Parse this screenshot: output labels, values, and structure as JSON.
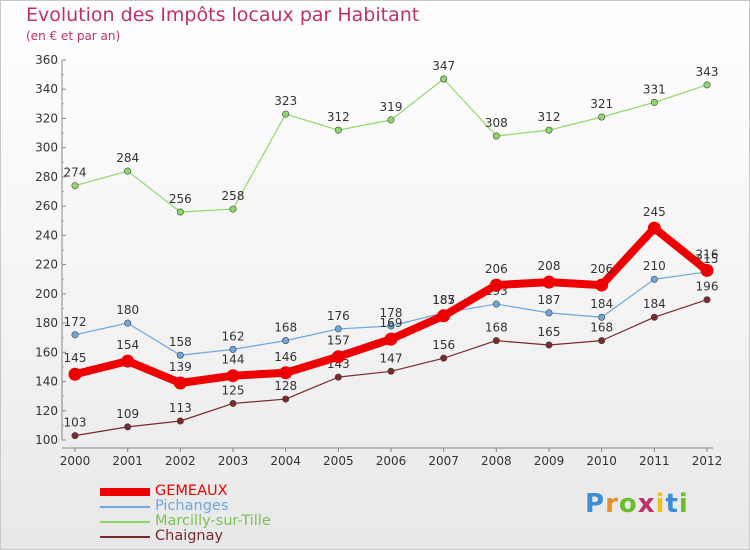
{
  "title": "Evolution des Impôts locaux par Habitant",
  "subtitle": "(en € et par an)",
  "logo": {
    "letters": [
      "P",
      "r",
      "o",
      "x",
      "i",
      "t",
      "i"
    ],
    "colors": [
      "#3b8fd4",
      "#e8902a",
      "#6cbf2c",
      "#c0306b",
      "#f0c020",
      "#3b8fd4",
      "#6cbf2c"
    ]
  },
  "chart_data": {
    "type": "line",
    "x": [
      "2000",
      "2001",
      "2002",
      "2003",
      "2004",
      "2005",
      "2006",
      "2007",
      "2008",
      "2009",
      "2010",
      "2011",
      "2012"
    ],
    "ylim": [
      100,
      360
    ],
    "yticks": [
      "100",
      "120",
      "140",
      "160",
      "180",
      "200",
      "220",
      "240",
      "260",
      "280",
      "300",
      "320",
      "340",
      "360"
    ],
    "grid": false,
    "legend_position": "bottom-left",
    "series": [
      {
        "name": "Marcilly-sur-Tille",
        "color": "#8ed86a",
        "values": [
          274,
          284,
          256,
          258,
          323,
          312,
          319,
          347,
          308,
          312,
          321,
          331,
          343
        ],
        "labels": [
          "274",
          "284",
          "256",
          "258",
          "323",
          "312",
          "319",
          "347",
          "308",
          "312",
          "321",
          "331",
          "343"
        ]
      },
      {
        "name": "Pichanges",
        "color": "#6fa8dc",
        "values": [
          172,
          180,
          158,
          162,
          168,
          176,
          178,
          187,
          193,
          187,
          184,
          210,
          215
        ],
        "labels": [
          "172",
          "180",
          "158",
          "162",
          "168",
          "176",
          "178",
          "187",
          "193",
          "187",
          "184",
          "210",
          "215"
        ]
      },
      {
        "name": "Chaignay",
        "color": "#7a2a2a",
        "values": [
          103,
          109,
          113,
          125,
          128,
          143,
          147,
          156,
          168,
          165,
          168,
          184,
          196
        ],
        "labels": [
          "103",
          "109",
          "113",
          "125",
          "128",
          "143",
          "147",
          "156",
          "168",
          "165",
          "168",
          "184",
          "196"
        ]
      },
      {
        "name": "GEMEAUX",
        "color": "#ee0000",
        "values": [
          145,
          154,
          139,
          144,
          146,
          157,
          169,
          185,
          206,
          208,
          206,
          245,
          216
        ],
        "labels": [
          "145",
          "154",
          "139",
          "144",
          "146",
          "157",
          "169",
          "185",
          "206",
          "208",
          "206",
          "245",
          "216"
        ]
      }
    ]
  }
}
